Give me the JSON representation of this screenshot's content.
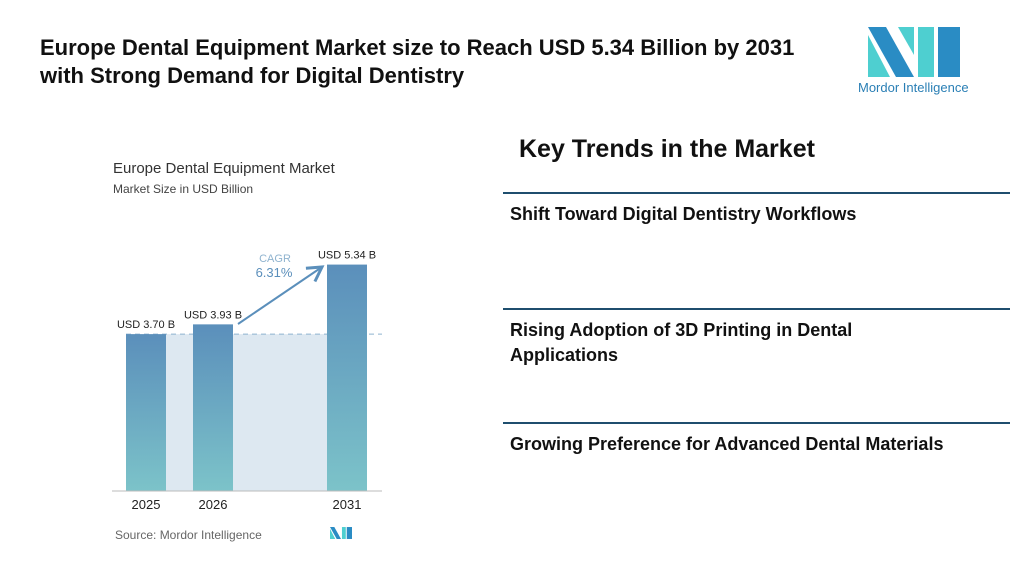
{
  "title": "Europe Dental Equipment Market size to Reach USD 5.34 Billion by 2031 with Strong Demand for Digital Dentistry",
  "logo": {
    "text": "Mordor Intelligence",
    "colors": [
      "#2a8cc4",
      "#4ecfd0"
    ]
  },
  "chart_data": {
    "type": "bar",
    "title": "Europe Dental Equipment Market",
    "subtitle": "Market Size in USD Billion",
    "categories": [
      "2025",
      "2026",
      "2031"
    ],
    "values": [
      3.7,
      3.93,
      5.34
    ],
    "data_labels": [
      "USD 3.70 B",
      "USD 3.93 B",
      "USD 5.34 B"
    ],
    "annotation": {
      "label": "CAGR",
      "value": "6.31%"
    },
    "ylim": [
      0,
      5.6
    ],
    "grid": false,
    "source": "Source: Mordor Intelligence",
    "colors": {
      "bar_top": "#5b8fbb",
      "bar_bottom": "#7cc3c9",
      "shade": "#dde8f1",
      "arrow": "#5b8fbb"
    }
  },
  "trends": {
    "heading": "Key Trends in the Market",
    "items": [
      "Shift Toward Digital Dentistry Workflows",
      "Rising Adoption of 3D Printing in Dental Applications",
      "Growing Preference for Advanced Dental Materials"
    ]
  }
}
